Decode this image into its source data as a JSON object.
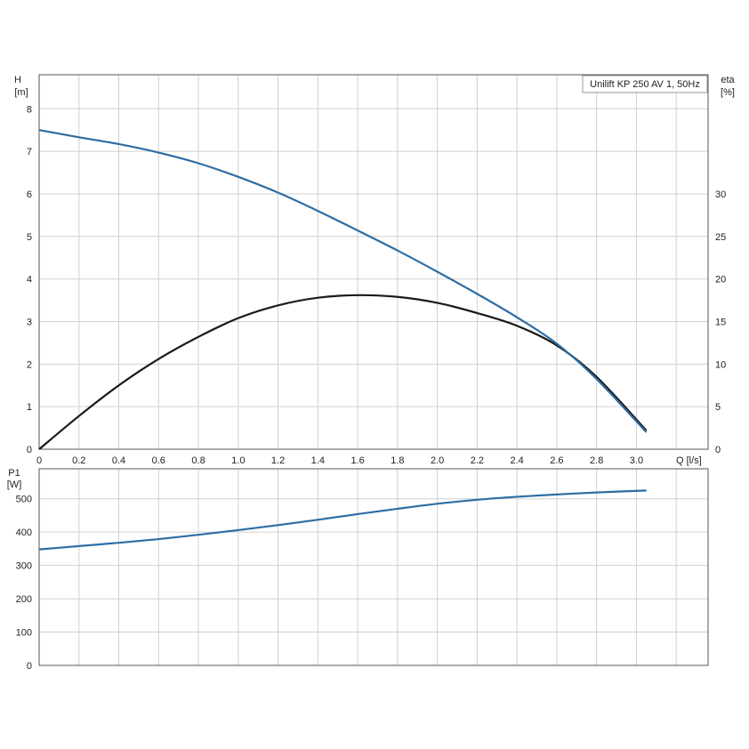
{
  "colors": {
    "head_curve": "#2e6da4",
    "efficiency_curve": "#1a1a1a",
    "power_curve": "#2e6da4",
    "grid": "#d0d0d0",
    "frame": "#555555"
  },
  "chart_data": [
    {
      "type": "line",
      "legend": "Unilift KP 250 AV 1, 50Hz",
      "legend_position": "top-right",
      "grid": true,
      "xlabel": "Q [l/s]",
      "ylabel_left": {
        "name": "H",
        "unit": "[m]"
      },
      "ylabel_right": {
        "name": "eta",
        "unit": "[%]"
      },
      "xlim": [
        0,
        3.36
      ],
      "ylim_left": [
        0,
        8.8
      ],
      "ylim_right": [
        0,
        44
      ],
      "x_ticks": [
        "0",
        "0.2",
        "0.4",
        "0.6",
        "0.8",
        "1.0",
        "1.2",
        "1.4",
        "1.6",
        "1.8",
        "2.0",
        "2.2",
        "2.4",
        "2.6",
        "2.8",
        "3.0"
      ],
      "y_ticks_left": [
        "0",
        "1",
        "2",
        "3",
        "4",
        "5",
        "6",
        "7",
        "8"
      ],
      "y_ticks_right": [
        "0",
        "5",
        "10",
        "15",
        "20",
        "25",
        "30"
      ],
      "series": [
        {
          "axis": "left",
          "x": [
            0,
            0.2,
            0.4,
            0.6,
            0.8,
            1.0,
            1.2,
            1.4,
            1.6,
            1.8,
            2.0,
            2.2,
            2.4,
            2.6,
            2.8,
            3.05
          ],
          "y": [
            7.5,
            7.33,
            7.17,
            6.97,
            6.72,
            6.4,
            6.03,
            5.6,
            5.14,
            4.67,
            4.17,
            3.65,
            3.1,
            2.48,
            1.65,
            0.4
          ]
        },
        {
          "axis": "right",
          "x": [
            0,
            0.2,
            0.4,
            0.6,
            0.8,
            1.0,
            1.2,
            1.4,
            1.6,
            1.8,
            2.0,
            2.2,
            2.4,
            2.6,
            2.8,
            3.05
          ],
          "y": [
            0,
            3.9,
            7.5,
            10.6,
            13.2,
            15.4,
            16.9,
            17.8,
            18.1,
            17.9,
            17.2,
            16.0,
            14.5,
            12.2,
            8.5,
            2.2
          ]
        }
      ]
    },
    {
      "type": "line",
      "grid": true,
      "ylabel": {
        "name": "P1",
        "unit": "[W]"
      },
      "xlim": [
        0,
        3.36
      ],
      "ylim": [
        0,
        590
      ],
      "y_ticks": [
        "0",
        "100",
        "200",
        "300",
        "400",
        "500"
      ],
      "series": [
        {
          "x": [
            0,
            0.2,
            0.4,
            0.6,
            0.8,
            1.0,
            1.2,
            1.4,
            1.6,
            1.8,
            2.0,
            2.2,
            2.4,
            2.6,
            2.8,
            3.05
          ],
          "y": [
            348,
            358,
            368,
            379,
            392,
            406,
            421,
            437,
            454,
            470,
            485,
            497,
            506,
            513,
            519,
            525
          ]
        }
      ]
    }
  ]
}
